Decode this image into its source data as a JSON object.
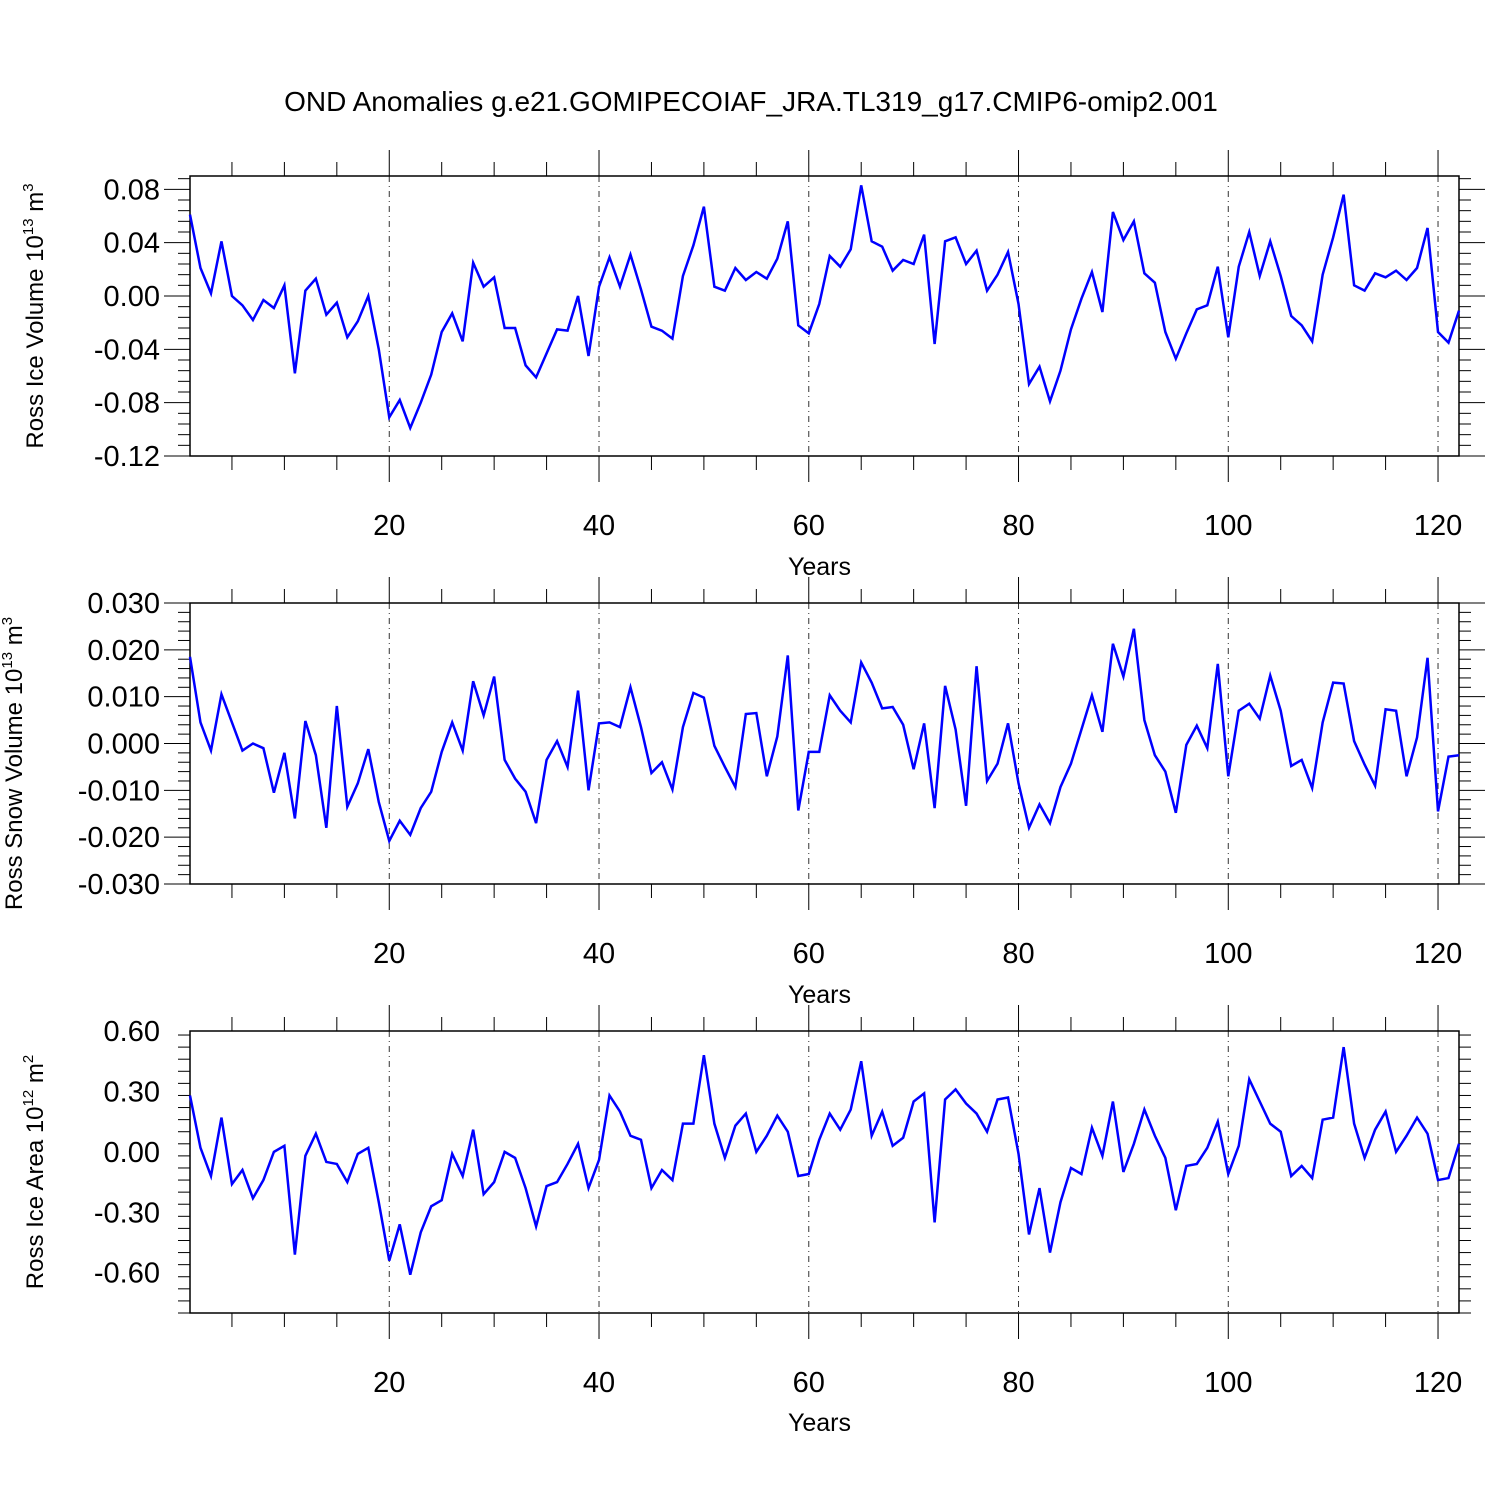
{
  "title": "OND Anomalies g.e21.GOMIPECOIAF_JRA.TL319_g17.CMIP6-omip2.001",
  "line_color": "#0000ff",
  "chart_data": [
    {
      "type": "line",
      "ylabel_main": "Ross Ice Volume 10",
      "ylabel_exp": "13",
      "ylabel_unit": " m",
      "ylabel_unit_exp": "3",
      "xlabel": "Years",
      "xlim": [
        1,
        122
      ],
      "ylim": [
        -0.12,
        0.09
      ],
      "yticks": [
        0.08,
        0.04,
        0.0,
        -0.04,
        -0.08,
        -0.12
      ],
      "ytick_labels": [
        "0.08",
        "0.04",
        "0.00",
        "-0.04",
        "-0.08",
        "-0.12"
      ],
      "xticks": [
        20,
        40,
        60,
        80,
        100,
        120
      ],
      "xtick_labels": [
        "20",
        "40",
        "60",
        "80",
        "100",
        "120"
      ],
      "values": [
        0.061,
        0.021,
        0.002,
        0.041,
        0.0,
        -0.007,
        -0.018,
        -0.003,
        -0.009,
        0.008,
        -0.058,
        0.004,
        0.013,
        -0.014,
        -0.005,
        -0.031,
        -0.019,
        0.0,
        -0.04,
        -0.091,
        -0.078,
        -0.099,
        -0.08,
        -0.059,
        -0.027,
        -0.013,
        -0.034,
        0.025,
        0.007,
        0.014,
        -0.024,
        -0.024,
        -0.052,
        -0.061,
        -0.043,
        -0.025,
        -0.026,
        0.0,
        -0.045,
        0.007,
        0.029,
        0.007,
        0.031,
        0.005,
        -0.023,
        -0.026,
        -0.032,
        0.015,
        0.038,
        0.067,
        0.007,
        0.004,
        0.021,
        0.012,
        0.018,
        0.013,
        0.028,
        0.056,
        -0.022,
        -0.028,
        -0.006,
        0.03,
        0.022,
        0.035,
        0.083,
        0.041,
        0.037,
        0.019,
        0.027,
        0.024,
        0.046,
        -0.036,
        0.041,
        0.044,
        0.024,
        0.034,
        0.004,
        0.016,
        0.033,
        -0.006,
        -0.066,
        -0.053,
        -0.079,
        -0.056,
        -0.025,
        -0.002,
        0.018,
        -0.012,
        0.063,
        0.042,
        0.056,
        0.017,
        0.01,
        -0.027,
        -0.047,
        -0.028,
        -0.01,
        -0.007,
        0.022,
        -0.031,
        0.022,
        0.048,
        0.015,
        0.041,
        0.015,
        -0.015,
        -0.022,
        -0.034,
        0.016,
        0.044,
        0.076,
        0.008,
        0.004,
        0.017,
        0.014,
        0.019,
        0.012,
        0.021,
        0.051,
        -0.027,
        -0.035,
        -0.011
      ]
    },
    {
      "type": "line",
      "ylabel_main": "Ross Snow Volume 10",
      "ylabel_exp": "13",
      "ylabel_unit": " m",
      "ylabel_unit_exp": "3",
      "xlabel": "Years",
      "xlim": [
        1,
        122
      ],
      "ylim": [
        -0.03,
        0.03
      ],
      "yticks": [
        0.03,
        0.02,
        0.01,
        0.0,
        -0.01,
        -0.02,
        -0.03
      ],
      "ytick_labels": [
        "0.030",
        "0.020",
        "0.010",
        "0.000",
        "-0.010",
        "-0.020",
        "-0.030"
      ],
      "xticks": [
        20,
        40,
        60,
        80,
        100,
        120
      ],
      "xtick_labels": [
        "20",
        "40",
        "60",
        "80",
        "100",
        "120"
      ],
      "values": [
        0.0185,
        0.0045,
        -0.0015,
        0.0105,
        0.0045,
        -0.0015,
        0.0,
        -0.001,
        -0.0105,
        -0.002,
        -0.016,
        0.0048,
        -0.0025,
        -0.018,
        0.008,
        -0.0135,
        -0.0085,
        -0.0012,
        -0.0125,
        -0.0208,
        -0.0165,
        -0.0195,
        -0.0138,
        -0.0103,
        -0.0018,
        0.0045,
        -0.0015,
        0.0133,
        0.006,
        0.0143,
        -0.0035,
        -0.0075,
        -0.0103,
        -0.017,
        -0.0035,
        0.0005,
        -0.005,
        0.0113,
        -0.01,
        0.0043,
        0.0045,
        0.0035,
        0.012,
        0.0035,
        -0.0063,
        -0.004,
        -0.0098,
        0.0035,
        0.0108,
        0.0098,
        -0.0005,
        -0.005,
        -0.0093,
        0.0063,
        0.0065,
        -0.007,
        0.0015,
        0.0188,
        -0.0143,
        -0.0018,
        -0.0018,
        0.0103,
        0.007,
        0.0045,
        0.0173,
        0.013,
        0.0075,
        0.0078,
        0.004,
        -0.0055,
        0.0043,
        -0.0138,
        0.0123,
        0.003,
        -0.0133,
        0.0165,
        -0.008,
        -0.0043,
        0.0043,
        -0.0085,
        -0.018,
        -0.013,
        -0.017,
        -0.0093,
        -0.0043,
        0.003,
        0.0103,
        0.0025,
        0.0213,
        0.0143,
        0.0245,
        0.005,
        -0.0025,
        -0.006,
        -0.0148,
        -0.0003,
        0.0038,
        -0.001,
        0.017,
        -0.007,
        0.007,
        0.0085,
        0.0053,
        0.0145,
        0.007,
        -0.0048,
        -0.0035,
        -0.0095,
        0.0045,
        0.013,
        0.0128,
        0.0005,
        -0.0045,
        -0.009,
        0.0073,
        0.007,
        -0.007,
        0.0013,
        0.0183,
        -0.0145,
        -0.0028,
        -0.0025
      ]
    },
    {
      "type": "line",
      "ylabel_main": "Ross Ice Area 10",
      "ylabel_exp": "12",
      "ylabel_unit": " m",
      "ylabel_unit_exp": "2",
      "xlabel": "Years",
      "xlim": [
        1,
        122
      ],
      "ylim": [
        -0.8,
        0.6
      ],
      "yticks": [
        0.6,
        0.3,
        0.0,
        -0.3,
        -0.6
      ],
      "ytick_labels": [
        "0.60",
        "0.30",
        "0.00",
        "-0.30",
        "-0.60"
      ],
      "xticks": [
        20,
        40,
        60,
        80,
        100,
        120
      ],
      "xtick_labels": [
        "20",
        "40",
        "60",
        "80",
        "100",
        "120"
      ],
      "values": [
        0.28,
        0.02,
        -0.12,
        0.17,
        -0.16,
        -0.09,
        -0.23,
        -0.14,
        0.0,
        0.03,
        -0.51,
        -0.02,
        0.09,
        -0.05,
        -0.06,
        -0.15,
        -0.01,
        0.02,
        -0.25,
        -0.54,
        -0.36,
        -0.61,
        -0.4,
        -0.27,
        -0.24,
        -0.01,
        -0.12,
        0.11,
        -0.21,
        -0.15,
        0.0,
        -0.03,
        -0.18,
        -0.37,
        -0.17,
        -0.15,
        -0.06,
        0.04,
        -0.18,
        -0.04,
        0.28,
        0.2,
        0.08,
        0.06,
        -0.18,
        -0.09,
        -0.14,
        0.14,
        0.14,
        0.48,
        0.14,
        -0.03,
        0.13,
        0.19,
        0.0,
        0.08,
        0.18,
        0.1,
        -0.12,
        -0.11,
        0.06,
        0.19,
        0.11,
        0.21,
        0.45,
        0.08,
        0.2,
        0.03,
        0.07,
        0.25,
        0.29,
        -0.35,
        0.26,
        0.31,
        0.24,
        0.19,
        0.1,
        0.26,
        0.27,
        -0.01,
        -0.41,
        -0.18,
        -0.5,
        -0.25,
        -0.08,
        -0.11,
        0.12,
        -0.02,
        0.25,
        -0.1,
        0.04,
        0.21,
        0.08,
        -0.03,
        -0.29,
        -0.07,
        -0.06,
        0.02,
        0.15,
        -0.11,
        0.03,
        0.36,
        0.25,
        0.14,
        0.1,
        -0.12,
        -0.07,
        -0.13,
        0.16,
        0.17,
        0.52,
        0.14,
        -0.03,
        0.11,
        0.2,
        0.0,
        0.08,
        0.17,
        0.09,
        -0.14,
        -0.13,
        0.04
      ]
    }
  ]
}
